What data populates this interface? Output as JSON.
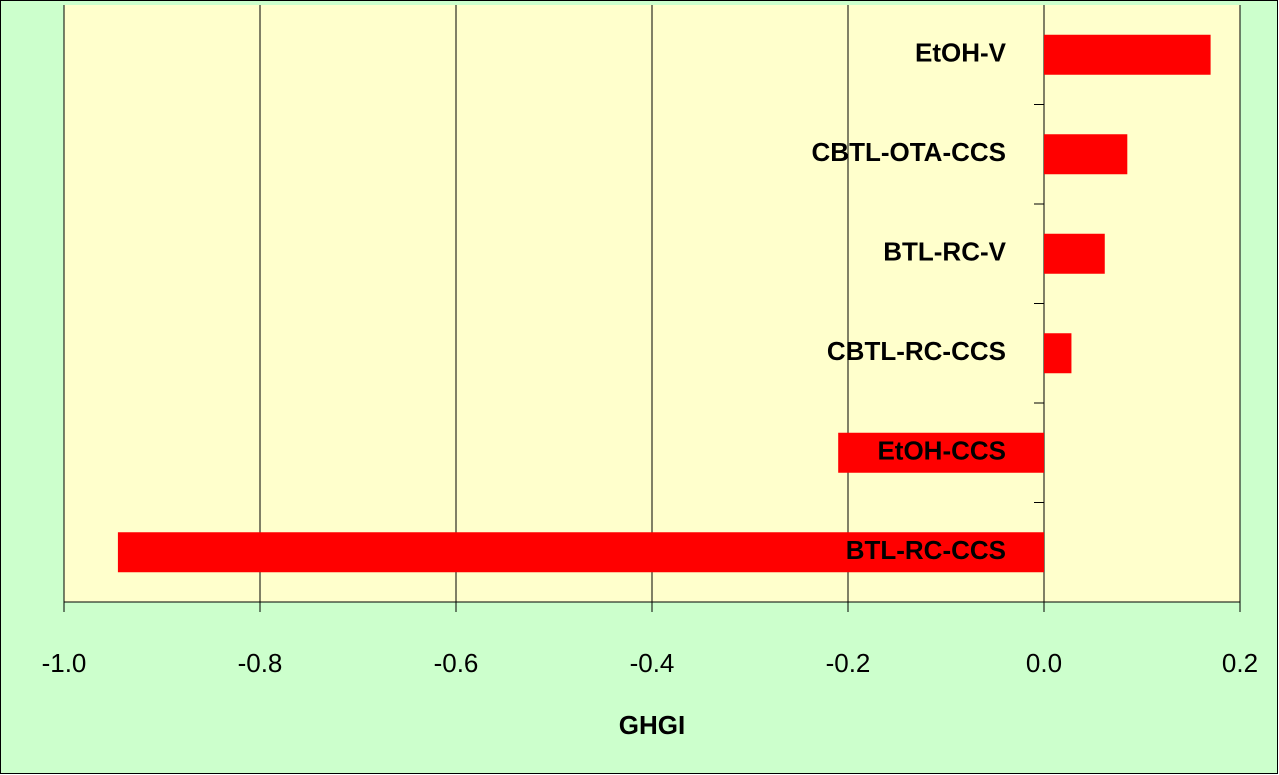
{
  "chart_data": {
    "type": "barh",
    "categories": [
      "EtOH-V",
      "CBTL-OTA-CCS",
      "BTL-RC-V",
      "CBTL-RC-CCS",
      "EtOH-CCS",
      "BTL-RC-CCS"
    ],
    "values": [
      0.17,
      0.085,
      0.062,
      0.028,
      -0.21,
      -0.945
    ],
    "color": "#ff0000",
    "xlabel": "GHGI",
    "xlim": [
      -1,
      0.2
    ],
    "xticks": [
      {
        "value": -1,
        "label": "-1.0"
      },
      -0.8,
      -0.6,
      -0.4,
      -0.2,
      {
        "value": 0,
        "label": "0.0"
      },
      0.2
    ],
    "grid": true
  }
}
